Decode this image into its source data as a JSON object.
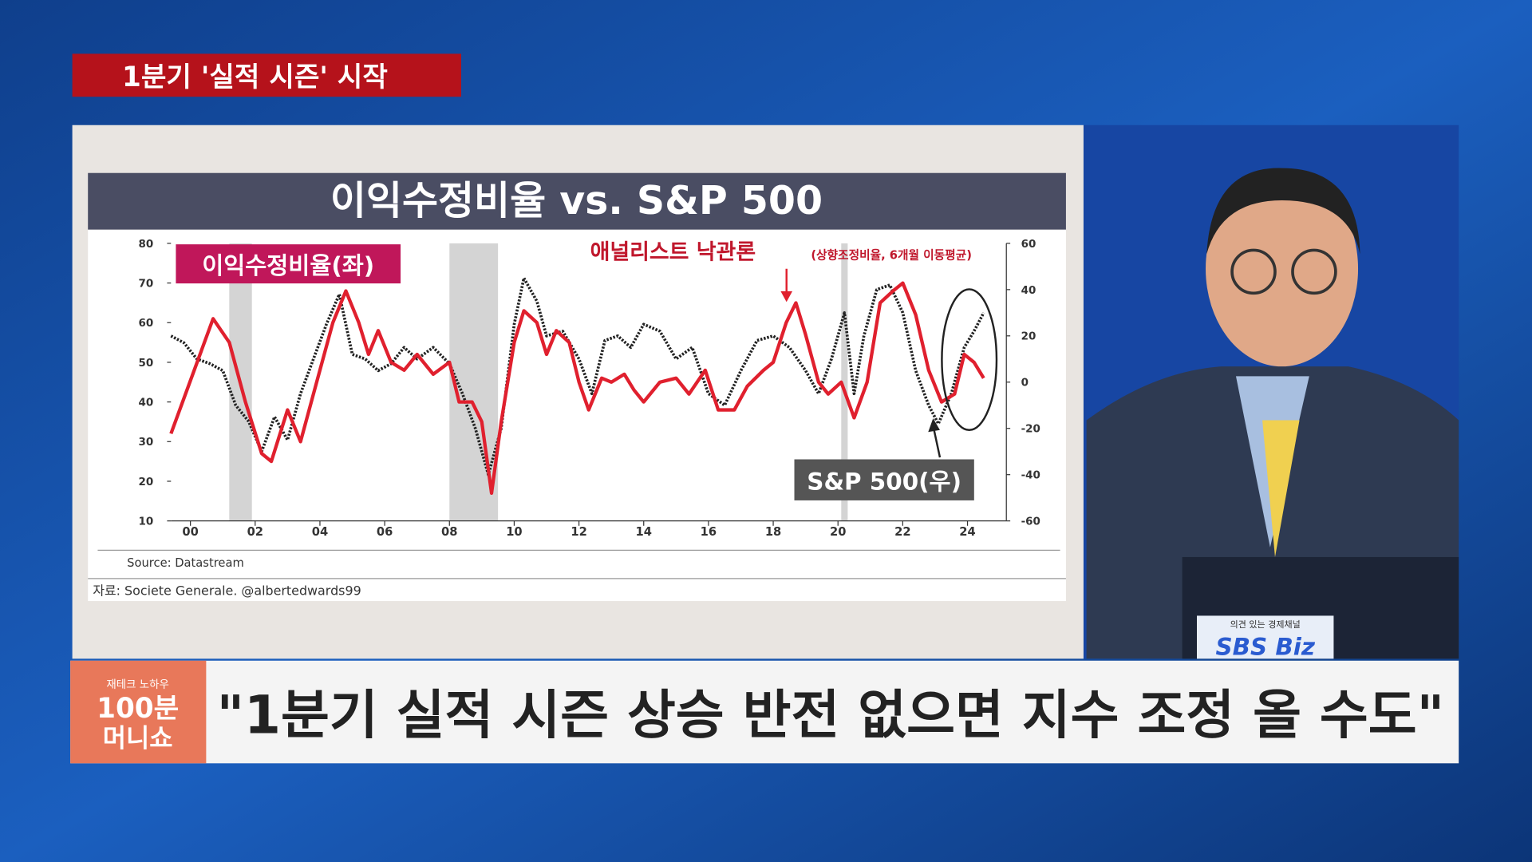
{
  "broadcast": {
    "topic": "1분기 '실적 시즌' 시작",
    "headline": "\"1분기 실적 시즌 상승 반전 없으면 지수 조정 올 수도\"",
    "logo_top": "재테크 노하우",
    "logo_mid": "100분",
    "logo_bottom": "머니쇼",
    "channel_slogan": "의견 있는 경제채널",
    "channel": "SBS Biz"
  },
  "chart_data": {
    "type": "line",
    "title": "이익수정비율 vs. S&P 500",
    "annotation": "애널리스트 낙관론",
    "annotation_sub": "(상향조정비율, 6개월 이동평균)",
    "source": "Source: Datastream",
    "credit": "자료:  Societe Generale. @albertedwards99",
    "xlim": [
      1999.4,
      2025.2
    ],
    "xticks": [
      {
        "value": 2000,
        "label": "00"
      },
      {
        "value": 2002,
        "label": "02"
      },
      {
        "value": 2004,
        "label": "04"
      },
      {
        "value": 2006,
        "label": "06"
      },
      {
        "value": 2008,
        "label": "08"
      },
      {
        "value": 2010,
        "label": "10"
      },
      {
        "value": 2012,
        "label": "12"
      },
      {
        "value": 2014,
        "label": "14"
      },
      {
        "value": 2016,
        "label": "16"
      },
      {
        "value": 2018,
        "label": "18"
      },
      {
        "value": 2020,
        "label": "20"
      },
      {
        "value": 2022,
        "label": "22"
      },
      {
        "value": 2024,
        "label": "24"
      }
    ],
    "ylim": [
      10,
      80
    ],
    "yticks": [
      10,
      20,
      30,
      40,
      50,
      60,
      70,
      80
    ],
    "y2lim": [
      -60,
      60
    ],
    "y2ticks": [
      -60,
      -40,
      -20,
      0,
      20,
      40,
      60
    ],
    "shaded_periods": [
      [
        2001.2,
        2001.9
      ],
      [
        2008,
        2009.5
      ],
      [
        2020.1,
        2020.3
      ]
    ],
    "series": [
      {
        "name": "이익수정비율(좌)",
        "color": "#e0202e",
        "axis": "y",
        "x": [
          1999.4,
          2000.7,
          2001.2,
          2001.7,
          2002.2,
          2002.5,
          2003,
          2003.4,
          2003.9,
          2004.4,
          2004.8,
          2005.2,
          2005.5,
          2005.8,
          2006.2,
          2006.6,
          2007,
          2007.5,
          2008,
          2008.3,
          2008.7,
          2009,
          2009.3,
          2009.6,
          2010,
          2010.3,
          2010.7,
          2011,
          2011.3,
          2011.7,
          2012,
          2012.3,
          2012.7,
          2013,
          2013.4,
          2013.7,
          2014,
          2014.5,
          2015,
          2015.4,
          2015.9,
          2016.3,
          2016.8,
          2017.2,
          2017.7,
          2018,
          2018.4,
          2018.7,
          2019,
          2019.4,
          2019.7,
          2020.1,
          2020.5,
          2020.9,
          2021.3,
          2021.7,
          2022,
          2022.4,
          2022.8,
          2023.2,
          2023.6,
          2023.9,
          2024.2,
          2024.5
        ],
        "values": [
          32,
          61,
          55,
          40,
          27,
          25,
          38,
          30,
          45,
          60,
          68,
          60,
          52,
          58,
          50,
          48,
          52,
          47,
          50,
          40,
          40,
          35,
          17,
          35,
          55,
          63,
          60,
          52,
          58,
          55,
          45,
          38,
          46,
          45,
          47,
          43,
          40,
          45,
          46,
          42,
          48,
          38,
          38,
          44,
          48,
          50,
          60,
          65,
          57,
          45,
          42,
          45,
          36,
          45,
          65,
          68,
          70,
          62,
          48,
          40,
          42,
          52,
          50,
          46
        ]
      },
      {
        "name": "S&P 500(우)",
        "color": "#222222",
        "axis": "y2",
        "x": [
          1999.4,
          1999.8,
          2000.2,
          2000.6,
          2001,
          2001.4,
          2001.8,
          2002.2,
          2002.6,
          2003,
          2003.4,
          2003.8,
          2004.2,
          2004.6,
          2005,
          2005.4,
          2005.8,
          2006.2,
          2006.6,
          2007,
          2007.5,
          2008,
          2008.4,
          2008.8,
          2009.2,
          2009.6,
          2010,
          2010.3,
          2010.7,
          2011,
          2011.5,
          2012,
          2012.4,
          2012.8,
          2013.2,
          2013.6,
          2014,
          2014.5,
          2015,
          2015.5,
          2016,
          2016.5,
          2017,
          2017.5,
          2018,
          2018.5,
          2019,
          2019.4,
          2019.8,
          2020.2,
          2020.5,
          2020.8,
          2021.2,
          2021.6,
          2022,
          2022.4,
          2022.8,
          2023.1,
          2023.5,
          2023.9,
          2024.2,
          2024.5
        ],
        "values": [
          20,
          17,
          10,
          8,
          5,
          -10,
          -17,
          -30,
          -15,
          -25,
          -5,
          10,
          25,
          38,
          12,
          10,
          5,
          8,
          15,
          10,
          15,
          8,
          -5,
          -20,
          -40,
          -20,
          25,
          45,
          35,
          20,
          22,
          10,
          -5,
          18,
          20,
          15,
          25,
          22,
          10,
          15,
          -5,
          -10,
          5,
          18,
          20,
          15,
          5,
          -5,
          10,
          30,
          -5,
          20,
          40,
          42,
          30,
          5,
          -10,
          -18,
          -5,
          15,
          22,
          30
        ]
      }
    ]
  }
}
